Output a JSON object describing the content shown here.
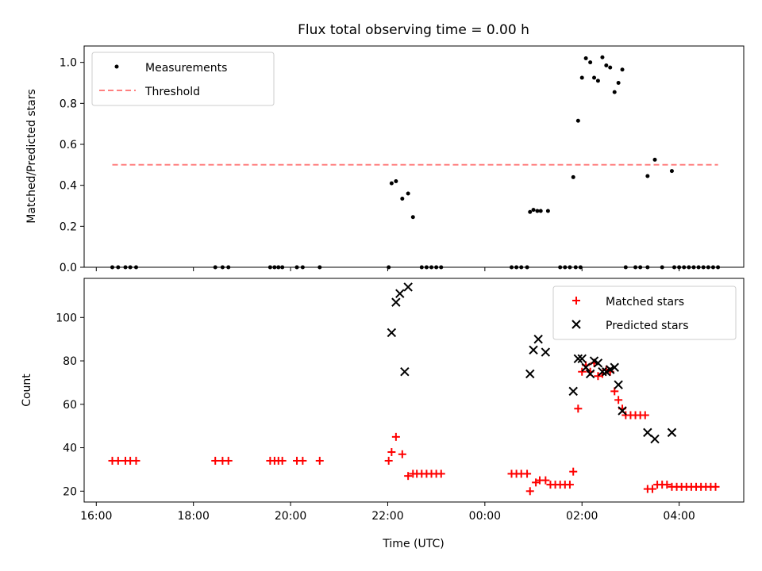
{
  "chart_data": [
    {
      "type": "scatter",
      "title": "Flux total observing time = 0.00 h",
      "ylabel": "Matched/Predicted stars",
      "xlabel": "",
      "ylim": [
        0,
        1.08
      ],
      "yticks": [
        "0.0",
        "0.2",
        "0.4",
        "0.6",
        "0.8",
        "1.0"
      ],
      "ytick_values": [
        0.0,
        0.2,
        0.4,
        0.6,
        0.8,
        1.0
      ],
      "legend_position": "top-left",
      "series": [
        {
          "name": "Measurements",
          "kind": "points",
          "color": "#000000",
          "points": [
            [
              16.33,
              0
            ],
            [
              16.45,
              0
            ],
            [
              16.6,
              0
            ],
            [
              16.7,
              0
            ],
            [
              16.82,
              0
            ],
            [
              18.45,
              0
            ],
            [
              18.6,
              0
            ],
            [
              18.72,
              0
            ],
            [
              19.58,
              0
            ],
            [
              19.67,
              0
            ],
            [
              19.75,
              0
            ],
            [
              19.83,
              0
            ],
            [
              20.13,
              0
            ],
            [
              20.25,
              0
            ],
            [
              20.6,
              0
            ],
            [
              22.02,
              0
            ],
            [
              22.08,
              0.41
            ],
            [
              22.17,
              0.42
            ],
            [
              22.3,
              0.335
            ],
            [
              22.42,
              0.36
            ],
            [
              22.52,
              0.245
            ],
            [
              22.7,
              0
            ],
            [
              22.8,
              0
            ],
            [
              22.9,
              0
            ],
            [
              23.0,
              0
            ],
            [
              23.1,
              0
            ],
            [
              24.55,
              0
            ],
            [
              24.65,
              0
            ],
            [
              24.75,
              0
            ],
            [
              24.87,
              0
            ],
            [
              24.93,
              0.27
            ],
            [
              25.0,
              0.28
            ],
            [
              25.08,
              0.275
            ],
            [
              25.15,
              0.275
            ],
            [
              25.3,
              0.275
            ],
            [
              25.55,
              0
            ],
            [
              25.65,
              0
            ],
            [
              25.75,
              0
            ],
            [
              25.87,
              0
            ],
            [
              25.97,
              0
            ],
            [
              25.82,
              0.44
            ],
            [
              25.92,
              0.715
            ],
            [
              26.0,
              0.925
            ],
            [
              26.08,
              1.02
            ],
            [
              26.17,
              1.0
            ],
            [
              26.25,
              0.925
            ],
            [
              26.33,
              0.91
            ],
            [
              26.42,
              1.025
            ],
            [
              26.5,
              0.985
            ],
            [
              26.58,
              0.975
            ],
            [
              26.67,
              0.855
            ],
            [
              26.75,
              0.9
            ],
            [
              26.83,
              0.965
            ],
            [
              26.9,
              0
            ],
            [
              27.1,
              0
            ],
            [
              27.2,
              0
            ],
            [
              27.35,
              0
            ],
            [
              27.35,
              0.445
            ],
            [
              27.5,
              0.525
            ],
            [
              27.65,
              0
            ],
            [
              27.85,
              0.47
            ],
            [
              27.9,
              0
            ],
            [
              28.0,
              0
            ],
            [
              28.1,
              0
            ],
            [
              28.2,
              0
            ],
            [
              28.3,
              0
            ],
            [
              28.4,
              0
            ],
            [
              28.5,
              0
            ],
            [
              28.6,
              0
            ],
            [
              28.7,
              0
            ],
            [
              28.8,
              0
            ]
          ]
        },
        {
          "name": "Threshold",
          "kind": "dashed-line",
          "color": "#ff8080",
          "points": [
            [
              16.33,
              0.5
            ],
            [
              28.8,
              0.5
            ]
          ]
        }
      ]
    },
    {
      "type": "scatter",
      "title": "",
      "ylabel": "Count",
      "xlabel": "Time (UTC)",
      "ylim": [
        15,
        118
      ],
      "yticks": [
        "20",
        "40",
        "60",
        "80",
        "100"
      ],
      "ytick_values": [
        20,
        40,
        60,
        80,
        100
      ],
      "xlim": [
        15.75,
        29.33
      ],
      "xticks": [
        "16:00",
        "18:00",
        "20:00",
        "22:00",
        "00:00",
        "02:00",
        "04:00"
      ],
      "xtick_values": [
        16,
        18,
        20,
        22,
        24,
        26,
        28
      ],
      "legend_position": "top-right",
      "series": [
        {
          "name": "Matched stars",
          "kind": "plus",
          "color": "#ff0000",
          "points": [
            [
              16.33,
              34
            ],
            [
              16.45,
              34
            ],
            [
              16.6,
              34
            ],
            [
              16.7,
              34
            ],
            [
              16.82,
              34
            ],
            [
              18.45,
              34
            ],
            [
              18.6,
              34
            ],
            [
              18.72,
              34
            ],
            [
              19.58,
              34
            ],
            [
              19.67,
              34
            ],
            [
              19.75,
              34
            ],
            [
              19.83,
              34
            ],
            [
              20.13,
              34
            ],
            [
              20.25,
              34
            ],
            [
              20.6,
              34
            ],
            [
              22.02,
              34
            ],
            [
              22.08,
              38
            ],
            [
              22.17,
              45
            ],
            [
              22.3,
              37
            ],
            [
              22.42,
              27
            ],
            [
              22.52,
              28
            ],
            [
              22.6,
              28
            ],
            [
              22.7,
              28
            ],
            [
              22.8,
              28
            ],
            [
              22.9,
              28
            ],
            [
              23.0,
              28
            ],
            [
              23.1,
              28
            ],
            [
              24.55,
              28
            ],
            [
              24.65,
              28
            ],
            [
              24.75,
              28
            ],
            [
              24.87,
              28
            ],
            [
              24.93,
              20
            ],
            [
              25.05,
              24
            ],
            [
              25.13,
              25
            ],
            [
              25.25,
              25
            ],
            [
              25.35,
              23
            ],
            [
              25.45,
              23
            ],
            [
              25.55,
              23
            ],
            [
              25.65,
              23
            ],
            [
              25.75,
              23
            ],
            [
              25.82,
              29
            ],
            [
              25.92,
              58
            ],
            [
              26.0,
              75
            ],
            [
              26.08,
              78
            ],
            [
              26.17,
              75
            ],
            [
              26.25,
              79
            ],
            [
              26.33,
              73
            ],
            [
              26.42,
              74
            ],
            [
              26.5,
              76
            ],
            [
              26.58,
              75
            ],
            [
              26.67,
              66
            ],
            [
              26.75,
              62
            ],
            [
              26.83,
              58
            ],
            [
              26.9,
              55
            ],
            [
              27.0,
              55
            ],
            [
              27.1,
              55
            ],
            [
              27.2,
              55
            ],
            [
              27.3,
              55
            ],
            [
              27.35,
              21
            ],
            [
              27.45,
              21
            ],
            [
              27.55,
              23
            ],
            [
              27.65,
              23
            ],
            [
              27.75,
              23
            ],
            [
              27.85,
              22
            ],
            [
              27.95,
              22
            ],
            [
              28.05,
              22
            ],
            [
              28.15,
              22
            ],
            [
              28.25,
              22
            ],
            [
              28.35,
              22
            ],
            [
              28.45,
              22
            ],
            [
              28.55,
              22
            ],
            [
              28.65,
              22
            ],
            [
              28.75,
              22
            ]
          ]
        },
        {
          "name": "Predicted stars",
          "kind": "x",
          "color": "#000000",
          "points": [
            [
              22.08,
              93
            ],
            [
              22.17,
              107
            ],
            [
              22.25,
              111
            ],
            [
              22.35,
              75
            ],
            [
              22.42,
              114
            ],
            [
              24.93,
              74
            ],
            [
              25.0,
              85
            ],
            [
              25.1,
              90
            ],
            [
              25.25,
              84
            ],
            [
              25.82,
              66
            ],
            [
              25.92,
              81
            ],
            [
              26.0,
              81
            ],
            [
              26.08,
              77
            ],
            [
              26.17,
              74
            ],
            [
              26.25,
              80
            ],
            [
              26.33,
              79
            ],
            [
              26.42,
              75
            ],
            [
              26.5,
              75
            ],
            [
              26.58,
              76
            ],
            [
              26.67,
              77
            ],
            [
              26.75,
              69
            ],
            [
              26.83,
              57
            ],
            [
              27.35,
              47
            ],
            [
              27.5,
              44
            ],
            [
              27.85,
              47
            ]
          ]
        }
      ]
    }
  ]
}
